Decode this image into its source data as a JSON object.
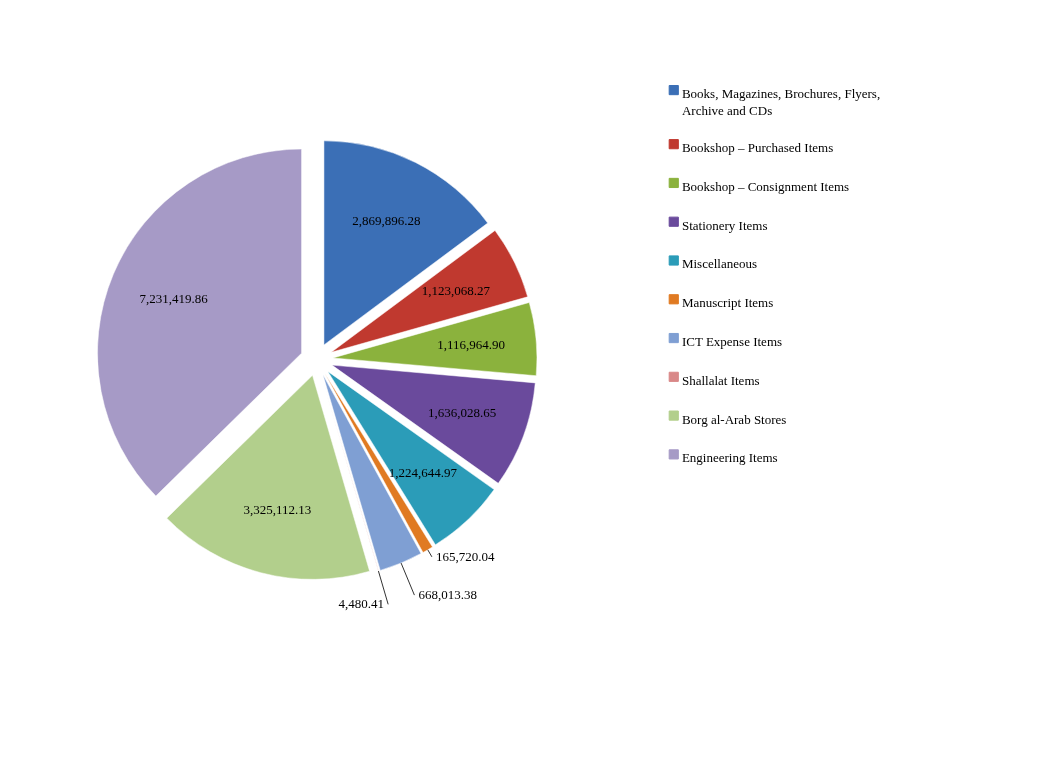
{
  "chart_data": {
    "type": "pie",
    "categories": [
      "Books, Magazines, Brochures, Flyers, Archive and CDs",
      "Bookshop – Purchased Items",
      "Bookshop – Consignment Items",
      "Stationery Items",
      "Miscellaneous",
      "Manuscript Items",
      "ICT Expense Items",
      "Shallalat Items",
      "Borg al-Arab Stores",
      "Engineering Items"
    ],
    "values": [
      2869896.28,
      1123068.27,
      1116964.9,
      1636028.65,
      1224644.97,
      165720.04,
      668013.38,
      4480.41,
      3325112.13,
      7231419.86
    ],
    "colors": [
      "#3b6fb6",
      "#c0392f",
      "#8bb23d",
      "#6a4a9c",
      "#2b9cb8",
      "#e07a22",
      "#7f9fd3",
      "#d98888",
      "#b2cf8c",
      "#a69ac6"
    ],
    "value_labels": [
      "2,869,896.28",
      "1,123,068.27",
      "1,116,964.90",
      "1,636,028.65",
      "1,224,644.97",
      "165,720.04",
      "668,013.38",
      "4,480.41",
      "3,325,112.13",
      "7,231,419.86"
    ],
    "legend": "right"
  }
}
